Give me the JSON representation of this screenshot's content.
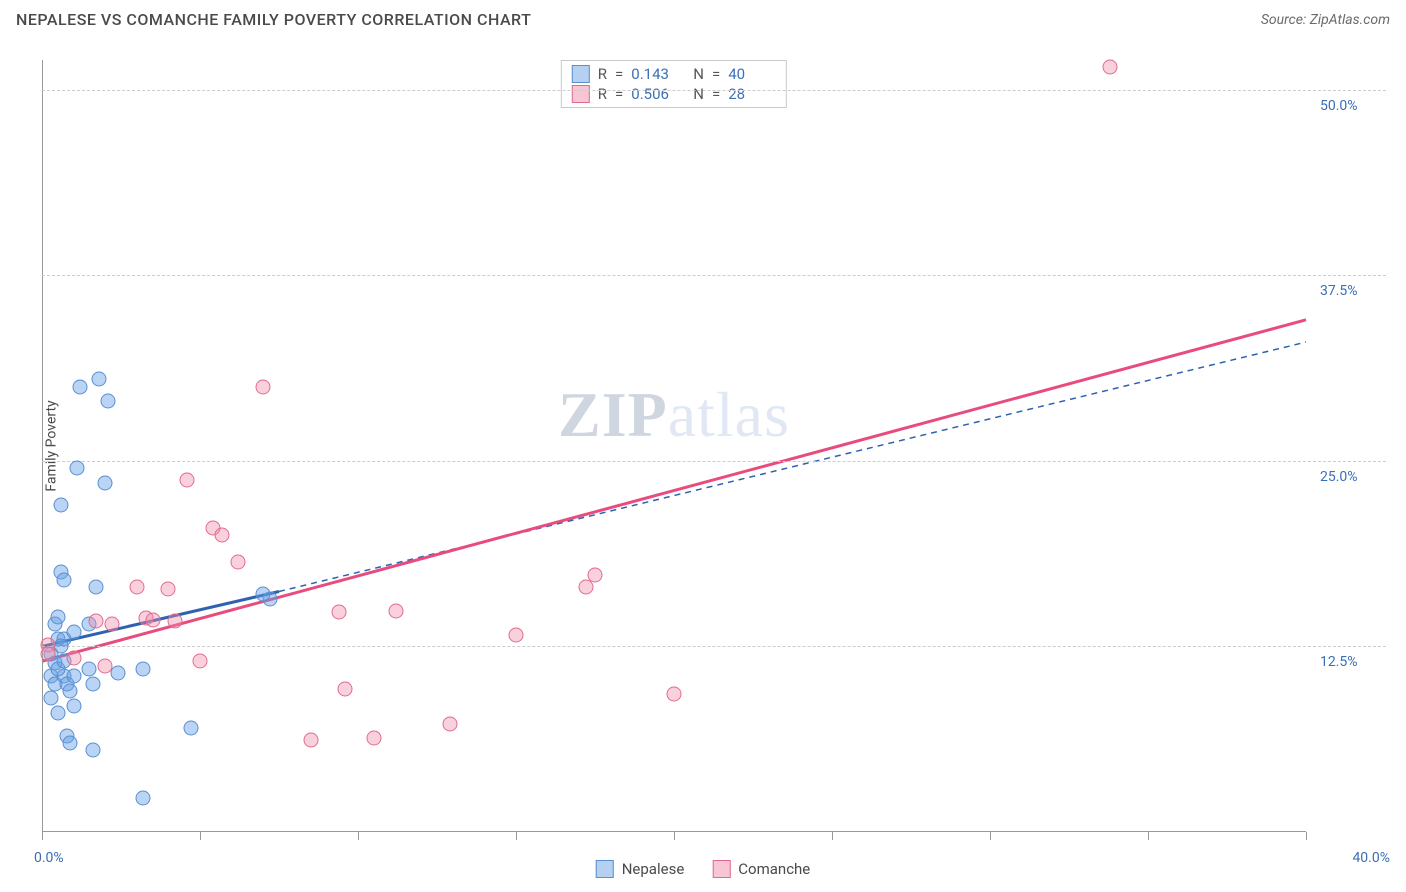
{
  "header": {
    "title": "NEPALESE VS COMANCHE FAMILY POVERTY CORRELATION CHART",
    "source_label": "Source: ZipAtlas.com"
  },
  "axes": {
    "y_label": "Family Poverty",
    "x_min": 0.0,
    "x_max": 40.0,
    "y_min": 0.0,
    "y_max": 52.0,
    "y_ticks": [
      12.5,
      25.0,
      37.5,
      50.0
    ],
    "y_tick_labels": [
      "12.5%",
      "25.0%",
      "37.5%",
      "50.0%"
    ],
    "x_ticks": [
      0,
      5,
      10,
      15,
      20,
      25,
      30,
      35,
      40
    ],
    "x_min_label": "0.0%",
    "x_max_label": "40.0%",
    "grid_color": "#cccccc"
  },
  "watermark": {
    "text_a": "ZIP",
    "text_b": "atlas"
  },
  "series": [
    {
      "id": "nepalese",
      "label": "Nepalese",
      "fill": "rgba(100,160,230,0.45)",
      "stroke": "#5a8fce",
      "marker_size": 15,
      "r_value": "0.143",
      "n_value": "40",
      "trend": {
        "color": "#2e62b0",
        "width_solid": 3,
        "width_dash": 1.5,
        "dash": "6,5",
        "solid_x1": 0.0,
        "solid_y1": 12.5,
        "solid_x2": 7.5,
        "solid_y2": 16.2,
        "dash_x1": 7.5,
        "dash_y1": 16.2,
        "dash_x2": 40.0,
        "dash_y2": 33.0
      },
      "points": [
        [
          0.3,
          12.0
        ],
        [
          0.3,
          10.5
        ],
        [
          0.3,
          9.0
        ],
        [
          0.4,
          10.0
        ],
        [
          0.5,
          8.0
        ],
        [
          0.4,
          14.0
        ],
        [
          0.5,
          14.5
        ],
        [
          0.5,
          13.0
        ],
        [
          0.6,
          22.0
        ],
        [
          0.6,
          17.5
        ],
        [
          0.7,
          17.0
        ],
        [
          0.7,
          13.0
        ],
        [
          0.7,
          10.5
        ],
        [
          0.8,
          10.0
        ],
        [
          0.8,
          6.5
        ],
        [
          0.9,
          6.0
        ],
        [
          1.0,
          10.5
        ],
        [
          1.0,
          13.5
        ],
        [
          1.1,
          24.5
        ],
        [
          1.2,
          30.0
        ],
        [
          1.5,
          14.0
        ],
        [
          1.5,
          11.0
        ],
        [
          1.6,
          10.0
        ],
        [
          1.7,
          16.5
        ],
        [
          1.8,
          30.5
        ],
        [
          2.0,
          23.5
        ],
        [
          2.1,
          29.0
        ],
        [
          2.4,
          10.7
        ],
        [
          3.2,
          2.3
        ],
        [
          3.2,
          11.0
        ],
        [
          0.4,
          11.4
        ],
        [
          0.5,
          11.0
        ],
        [
          0.6,
          12.5
        ],
        [
          0.7,
          11.5
        ],
        [
          0.9,
          9.5
        ],
        [
          1.0,
          8.5
        ],
        [
          1.6,
          5.5
        ],
        [
          4.7,
          7.0
        ],
        [
          7.2,
          15.7
        ],
        [
          7.0,
          16.0
        ]
      ]
    },
    {
      "id": "comanche",
      "label": "Comanche",
      "fill": "rgba(240,140,170,0.40)",
      "stroke": "#e26a8f",
      "marker_size": 15,
      "r_value": "0.506",
      "n_value": "28",
      "trend": {
        "color": "#e84c7d",
        "width_solid": 3,
        "width_dash": 0,
        "dash": "",
        "solid_x1": 0.0,
        "solid_y1": 11.5,
        "solid_x2": 40.0,
        "solid_y2": 34.5,
        "dash_x1": 0,
        "dash_y1": 0,
        "dash_x2": 0,
        "dash_y2": 0
      },
      "points": [
        [
          0.2,
          12.6
        ],
        [
          1.0,
          11.7
        ],
        [
          1.7,
          14.2
        ],
        [
          2.0,
          11.2
        ],
        [
          2.2,
          14.0
        ],
        [
          3.0,
          16.5
        ],
        [
          3.3,
          14.4
        ],
        [
          3.5,
          14.3
        ],
        [
          4.0,
          16.4
        ],
        [
          4.2,
          14.2
        ],
        [
          4.6,
          23.7
        ],
        [
          5.0,
          11.5
        ],
        [
          5.4,
          20.5
        ],
        [
          5.7,
          20.0
        ],
        [
          6.2,
          18.2
        ],
        [
          7.0,
          30.0
        ],
        [
          8.5,
          6.2
        ],
        [
          9.4,
          14.8
        ],
        [
          9.6,
          9.6
        ],
        [
          10.5,
          6.3
        ],
        [
          11.2,
          14.9
        ],
        [
          12.9,
          7.3
        ],
        [
          15.0,
          13.3
        ],
        [
          17.5,
          17.3
        ],
        [
          17.2,
          16.5
        ],
        [
          20.0,
          9.3
        ],
        [
          33.8,
          51.5
        ],
        [
          0.2,
          12.0
        ]
      ]
    }
  ],
  "legend": {
    "r_label": "R",
    "n_label": "N",
    "eq": "="
  },
  "colors": {
    "blue_swatch_fill": "rgba(120,170,230,0.55)",
    "blue_swatch_border": "#5a8fce",
    "pink_swatch_fill": "rgba(240,150,175,0.55)",
    "pink_swatch_border": "#e26a8f"
  }
}
